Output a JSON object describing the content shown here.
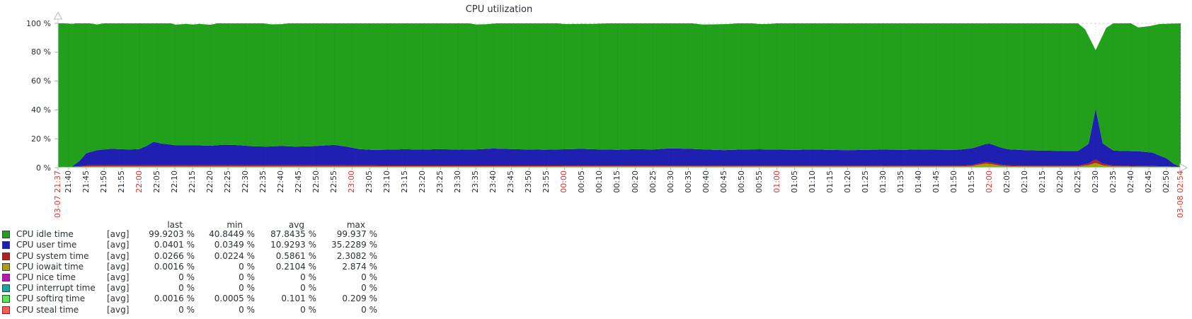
{
  "title": "CPU utilization",
  "colors": {
    "text": "#2a3138",
    "red_label": "#dd342c",
    "axis": "#ccd2d7",
    "arrow": "#b3bcc4",
    "grid_h": "#d4d4d4",
    "grid_v_overlay": "rgba(0,0,0,0.08)",
    "tick": "#a7b1b9",
    "idle": "#22a01c",
    "user": "#1f1fb2",
    "system": "#b02222",
    "iowait": "#aa9e0a",
    "nice": "#b519b5",
    "interrupt": "#18a6a6",
    "softirq": "#5ce457",
    "steal": "#ff5a5a"
  },
  "y_axis": {
    "labels": [
      {
        "v": 100,
        "text": "100 %"
      },
      {
        "v": 80,
        "text": "80 %"
      },
      {
        "v": 60,
        "text": "60 %"
      },
      {
        "v": 40,
        "text": "40 %"
      },
      {
        "v": 20,
        "text": "20 %"
      },
      {
        "v": 0,
        "text": "0 %"
      }
    ]
  },
  "x_axis": {
    "ticks": [
      {
        "t": 0,
        "label": "03-07 21:37",
        "red": true
      },
      {
        "t": 3,
        "label": "21:40",
        "red": false
      },
      {
        "t": 8,
        "label": "21:45",
        "red": false
      },
      {
        "t": 13,
        "label": "21:50",
        "red": false
      },
      {
        "t": 18,
        "label": "21:55",
        "red": false
      },
      {
        "t": 23,
        "label": "22:00",
        "red": true
      },
      {
        "t": 28,
        "label": "22:05",
        "red": false
      },
      {
        "t": 33,
        "label": "22:10",
        "red": false
      },
      {
        "t": 38,
        "label": "22:15",
        "red": false
      },
      {
        "t": 43,
        "label": "22:20",
        "red": false
      },
      {
        "t": 48,
        "label": "22:25",
        "red": false
      },
      {
        "t": 53,
        "label": "22:30",
        "red": false
      },
      {
        "t": 58,
        "label": "22:35",
        "red": false
      },
      {
        "t": 63,
        "label": "22:40",
        "red": false
      },
      {
        "t": 68,
        "label": "22:45",
        "red": false
      },
      {
        "t": 73,
        "label": "22:50",
        "red": false
      },
      {
        "t": 78,
        "label": "22:55",
        "red": false
      },
      {
        "t": 83,
        "label": "23:00",
        "red": true
      },
      {
        "t": 88,
        "label": "23:05",
        "red": false
      },
      {
        "t": 93,
        "label": "23:10",
        "red": false
      },
      {
        "t": 98,
        "label": "23:15",
        "red": false
      },
      {
        "t": 103,
        "label": "23:20",
        "red": false
      },
      {
        "t": 108,
        "label": "23:25",
        "red": false
      },
      {
        "t": 113,
        "label": "23:30",
        "red": false
      },
      {
        "t": 118,
        "label": "23:35",
        "red": false
      },
      {
        "t": 123,
        "label": "23:40",
        "red": false
      },
      {
        "t": 128,
        "label": "23:45",
        "red": false
      },
      {
        "t": 133,
        "label": "23:50",
        "red": false
      },
      {
        "t": 138,
        "label": "23:55",
        "red": false
      },
      {
        "t": 143,
        "label": "00:00",
        "red": true
      },
      {
        "t": 148,
        "label": "00:05",
        "red": false
      },
      {
        "t": 153,
        "label": "00:10",
        "red": false
      },
      {
        "t": 158,
        "label": "00:15",
        "red": false
      },
      {
        "t": 163,
        "label": "00:20",
        "red": false
      },
      {
        "t": 168,
        "label": "00:25",
        "red": false
      },
      {
        "t": 173,
        "label": "00:30",
        "red": false
      },
      {
        "t": 178,
        "label": "00:35",
        "red": false
      },
      {
        "t": 183,
        "label": "00:40",
        "red": false
      },
      {
        "t": 188,
        "label": "00:45",
        "red": false
      },
      {
        "t": 193,
        "label": "00:50",
        "red": false
      },
      {
        "t": 198,
        "label": "00:55",
        "red": false
      },
      {
        "t": 203,
        "label": "01:00",
        "red": true
      },
      {
        "t": 208,
        "label": "01:05",
        "red": false
      },
      {
        "t": 213,
        "label": "01:10",
        "red": false
      },
      {
        "t": 218,
        "label": "01:15",
        "red": false
      },
      {
        "t": 223,
        "label": "01:20",
        "red": false
      },
      {
        "t": 228,
        "label": "01:25",
        "red": false
      },
      {
        "t": 233,
        "label": "01:30",
        "red": false
      },
      {
        "t": 238,
        "label": "01:35",
        "red": false
      },
      {
        "t": 243,
        "label": "01:40",
        "red": false
      },
      {
        "t": 248,
        "label": "01:45",
        "red": false
      },
      {
        "t": 253,
        "label": "01:50",
        "red": false
      },
      {
        "t": 258,
        "label": "01:55",
        "red": false
      },
      {
        "t": 263,
        "label": "02:00",
        "red": true
      },
      {
        "t": 268,
        "label": "02:05",
        "red": false
      },
      {
        "t": 273,
        "label": "02:10",
        "red": false
      },
      {
        "t": 278,
        "label": "02:15",
        "red": false
      },
      {
        "t": 283,
        "label": "02:20",
        "red": false
      },
      {
        "t": 288,
        "label": "02:25",
        "red": false
      },
      {
        "t": 293,
        "label": "02:30",
        "red": false
      },
      {
        "t": 298,
        "label": "02:35",
        "red": false
      },
      {
        "t": 303,
        "label": "02:40",
        "red": false
      },
      {
        "t": 308,
        "label": "02:45",
        "red": false
      },
      {
        "t": 313,
        "label": "02:50",
        "red": false
      },
      {
        "t": 317,
        "label": "03-08 02:54",
        "red": true
      }
    ]
  },
  "legend": {
    "headers": [
      "last",
      "min",
      "avg",
      "max"
    ],
    "rows": [
      {
        "name": "CPU idle time",
        "color": "#22a01c",
        "fn": "[avg]",
        "last": "99.9203 %",
        "min": "40.8449 %",
        "avg": "87.8435 %",
        "max": "99.937 %"
      },
      {
        "name": "CPU user time",
        "color": "#1f1fb2",
        "fn": "[avg]",
        "last": "0.0401 %",
        "min": "0.0349 %",
        "avg": "10.9293 %",
        "max": "35.2289 %"
      },
      {
        "name": "CPU system time",
        "color": "#b02222",
        "fn": "[avg]",
        "last": "0.0266 %",
        "min": "0.0224 %",
        "avg": "0.5861 %",
        "max": "2.3082 %"
      },
      {
        "name": "CPU iowait time",
        "color": "#aa9e0a",
        "fn": "[avg]",
        "last": "0.0016 %",
        "min": "0 %",
        "avg": "0.2104 %",
        "max": "2.874 %"
      },
      {
        "name": "CPU nice time",
        "color": "#b519b5",
        "fn": "[avg]",
        "last": "0 %",
        "min": "0 %",
        "avg": "0 %",
        "max": "0 %"
      },
      {
        "name": "CPU interrupt time",
        "color": "#18a6a6",
        "fn": "[avg]",
        "last": "0 %",
        "min": "0 %",
        "avg": "0 %",
        "max": "0 %"
      },
      {
        "name": "CPU softirq time",
        "color": "#5ce457",
        "fn": "[avg]",
        "last": "0.0016 %",
        "min": "0.0005 %",
        "avg": "0.101 %",
        "max": "0.209 %"
      },
      {
        "name": "CPU steal time",
        "color": "#ff5a5a",
        "fn": "[avg]",
        "last": "0 %",
        "min": "0 %",
        "avg": "0 %",
        "max": "0 %"
      }
    ]
  },
  "chart_data": {
    "type": "area",
    "stacked": true,
    "unit": "%",
    "ylim": [
      0,
      100
    ],
    "x_start": "03-07 21:37",
    "x_end": "03-08 02:54",
    "x_minutes_total": 317,
    "grid": true,
    "legend_position": "bottom",
    "note": "t = minutes since 21:37; values in percent, estimated from pixels; layers listed bottom-to-top; idle fills up to stack_top (stack_top < 100 creates white gaps)",
    "layers": [
      {
        "name": "CPU softirq time",
        "color_key": "softirq",
        "points": [
          [
            0,
            0.45
          ],
          [
            317,
            0.45
          ]
        ]
      },
      {
        "name": "CPU iowait time",
        "color_key": "iowait",
        "points": [
          [
            0,
            0
          ],
          [
            4,
            0.1
          ],
          [
            8,
            0.4
          ],
          [
            255,
            0.4
          ],
          [
            258,
            0.7
          ],
          [
            260,
            1.6
          ],
          [
            262,
            2.4
          ],
          [
            264,
            1.8
          ],
          [
            266,
            0.9
          ],
          [
            269,
            0.5
          ],
          [
            273,
            0.4
          ],
          [
            288,
            0.4
          ],
          [
            291,
            1.3
          ],
          [
            293,
            2.87
          ],
          [
            295,
            1.1
          ],
          [
            298,
            0.4
          ],
          [
            309,
            0.3
          ],
          [
            313,
            0.2
          ],
          [
            315,
            0.1
          ],
          [
            317,
            0.02
          ]
        ]
      },
      {
        "name": "CPU system time",
        "color_key": "system",
        "points": [
          [
            0,
            0
          ],
          [
            4,
            0.05
          ],
          [
            6,
            0.3
          ],
          [
            8,
            0.7
          ],
          [
            15,
            0.75
          ],
          [
            78,
            0.75
          ],
          [
            85,
            0.65
          ],
          [
            140,
            0.6
          ],
          [
            200,
            0.5
          ],
          [
            255,
            0.5
          ],
          [
            258,
            0.6
          ],
          [
            261,
            0.9
          ],
          [
            263,
            1.1
          ],
          [
            265,
            0.9
          ],
          [
            268,
            0.6
          ],
          [
            273,
            0.5
          ],
          [
            288,
            0.5
          ],
          [
            291,
            1.2
          ],
          [
            293,
            2.3
          ],
          [
            295,
            1.2
          ],
          [
            298,
            0.5
          ],
          [
            305,
            0.4
          ],
          [
            309,
            0.35
          ],
          [
            313,
            0.25
          ],
          [
            315,
            0.12
          ],
          [
            317,
            0.03
          ]
        ]
      },
      {
        "name": "CPU user time",
        "color_key": "user",
        "points": [
          [
            0,
            0
          ],
          [
            4,
            0.3
          ],
          [
            6,
            3.5
          ],
          [
            8,
            8.5
          ],
          [
            11,
            10.5
          ],
          [
            15,
            11.5
          ],
          [
            20,
            11
          ],
          [
            23,
            11.3
          ],
          [
            25,
            13.5
          ],
          [
            27,
            16.3
          ],
          [
            29,
            15.2
          ],
          [
            33,
            14
          ],
          [
            38,
            14
          ],
          [
            43,
            13.6
          ],
          [
            47,
            14.3
          ],
          [
            51,
            14
          ],
          [
            55,
            13.2
          ],
          [
            59,
            13
          ],
          [
            63,
            13.4
          ],
          [
            67,
            13
          ],
          [
            71,
            13.2
          ],
          [
            75,
            13.7
          ],
          [
            78,
            14.2
          ],
          [
            81,
            13.2
          ],
          [
            85,
            11.4
          ],
          [
            89,
            10.8
          ],
          [
            93,
            11
          ],
          [
            98,
            11.3
          ],
          [
            103,
            11
          ],
          [
            108,
            11.4
          ],
          [
            113,
            11
          ],
          [
            118,
            11.2
          ],
          [
            123,
            11.8
          ],
          [
            128,
            11.4
          ],
          [
            133,
            11.1
          ],
          [
            138,
            11
          ],
          [
            143,
            11.3
          ],
          [
            148,
            11.6
          ],
          [
            153,
            11.2
          ],
          [
            158,
            11
          ],
          [
            163,
            11.4
          ],
          [
            168,
            11.2
          ],
          [
            173,
            12
          ],
          [
            178,
            11.7
          ],
          [
            183,
            11.2
          ],
          [
            188,
            10.8
          ],
          [
            193,
            11.2
          ],
          [
            198,
            11.4
          ],
          [
            203,
            11.2
          ],
          [
            208,
            11
          ],
          [
            213,
            11.3
          ],
          [
            218,
            11
          ],
          [
            223,
            10.8
          ],
          [
            228,
            11
          ],
          [
            233,
            11.2
          ],
          [
            238,
            11
          ],
          [
            243,
            11.3
          ],
          [
            248,
            11.1
          ],
          [
            253,
            11
          ],
          [
            258,
            11.6
          ],
          [
            261,
            12.2
          ],
          [
            263,
            13
          ],
          [
            265,
            12.3
          ],
          [
            268,
            11.2
          ],
          [
            273,
            10.8
          ],
          [
            278,
            10.5
          ],
          [
            283,
            10.3
          ],
          [
            288,
            10.2
          ],
          [
            291,
            13.5
          ],
          [
            293,
            35.2
          ],
          [
            295,
            14
          ],
          [
            298,
            10.5
          ],
          [
            301,
            10.3
          ],
          [
            305,
            10.2
          ],
          [
            309,
            9.3
          ],
          [
            313,
            5.5
          ],
          [
            315,
            2
          ],
          [
            317,
            0.04
          ]
        ]
      },
      {
        "name": "CPU idle time",
        "color_key": "idle",
        "to_top": true,
        "points": []
      }
    ],
    "stack_top_points": [
      [
        0,
        100
      ],
      [
        2,
        100
      ],
      [
        4,
        99.6
      ],
      [
        5,
        100
      ],
      [
        9,
        100
      ],
      [
        11,
        99.2
      ],
      [
        13,
        100
      ],
      [
        32,
        100
      ],
      [
        33,
        99.1
      ],
      [
        36,
        99.6
      ],
      [
        38,
        99.2
      ],
      [
        40,
        99.6
      ],
      [
        43,
        99.0
      ],
      [
        45,
        100
      ],
      [
        58,
        100
      ],
      [
        60,
        99.3
      ],
      [
        63,
        99.4
      ],
      [
        65,
        100
      ],
      [
        116,
        100
      ],
      [
        118,
        99.2
      ],
      [
        121,
        99.4
      ],
      [
        124,
        100
      ],
      [
        141,
        100
      ],
      [
        143,
        99.5
      ],
      [
        148,
        99.6
      ],
      [
        152,
        99.7
      ],
      [
        155,
        100
      ],
      [
        179,
        100
      ],
      [
        182,
        99.2
      ],
      [
        186,
        99.3
      ],
      [
        190,
        99.6
      ],
      [
        192,
        100
      ],
      [
        196,
        100
      ],
      [
        198,
        99.5
      ],
      [
        201,
        99.6
      ],
      [
        203,
        100
      ],
      [
        288,
        100
      ],
      [
        290,
        96
      ],
      [
        293,
        81.4
      ],
      [
        296,
        97
      ],
      [
        298,
        100
      ],
      [
        303,
        100
      ],
      [
        305,
        97.2
      ],
      [
        308,
        98
      ],
      [
        311,
        99.5
      ],
      [
        317,
        100
      ]
    ]
  }
}
